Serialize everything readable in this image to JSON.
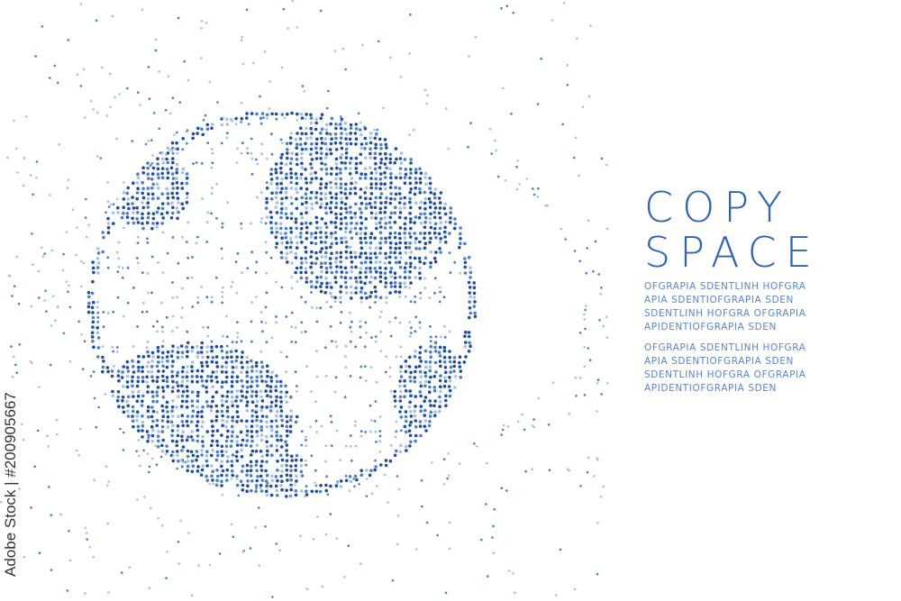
{
  "headline": {
    "line1": "COPY",
    "line2": "SPACE"
  },
  "paragraphs": [
    [
      "OFGRAPIA SDENTLINH HOFGRA",
      "APIA SDENTIOFGRAPIA SDEN",
      "SDENTLINH HOFGRA OFGRAPIA",
      "APIDENTIOFGRAPIA SDEN"
    ],
    [
      "OFGRAPIA SDENTLINH HOFGRA",
      "APIA SDENTIOFGRAPIA SDEN",
      "SDENTLINH HOFGRA OFGRAPIA",
      "APIDENTIOFGRAPIA SDEN"
    ]
  ],
  "watermark": "Adobe Stock | #200905667",
  "colors": {
    "dark_dot": "#1f4e9a",
    "mid_dot": "#4d7fc4",
    "light_dot": "#a9c0e3",
    "text": "#2f63b5"
  }
}
